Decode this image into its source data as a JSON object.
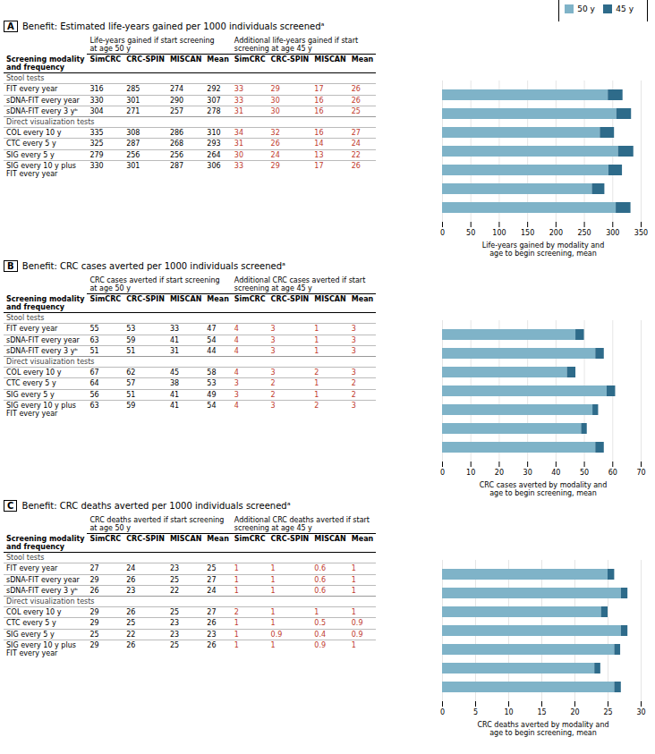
{
  "chart_data": [
    {
      "type": "bar",
      "orientation": "horizontal",
      "stacked": true,
      "tick_labels": "x",
      "grid": true,
      "legend": "upper right",
      "panel_label": "A",
      "title": "Benefit: Estimated life-years gained per 1000 individuals screenedᵃ",
      "categories": [
        "FIT every year",
        "sDNA-FIT every year",
        "sDNA-FIT every 3 yᵇ",
        "COL every 10 y",
        "CTC every 5 y",
        "SIG every 5 y",
        "SIG every 10 y plus\nFIT every year"
      ],
      "series": [
        {
          "name": "50 y",
          "color": "#7fb3c8",
          "values": [
            292,
            307,
            278,
            310,
            293,
            264,
            306
          ]
        },
        {
          "name": "45 y",
          "color": "#2e6b8a",
          "values": [
            26,
            26,
            25,
            27,
            24,
            22,
            26
          ]
        }
      ],
      "xlim": [
        0,
        350
      ],
      "xticks": [
        0,
        50,
        100,
        150,
        200,
        250,
        300,
        350
      ],
      "xlabel": "Life-years gained by modality and\nage to begin screening, mean",
      "table": {
        "row_header": "Screening modality\nand frequency",
        "column_groups": [
          {
            "label": "Life-years gained if start screening\nat age 50 y",
            "columns": [
              "SimCRC",
              "CRC-SPIN",
              "MISCAN",
              "Mean"
            ]
          },
          {
            "label": "Additional life-years gained if start\nscreening at age 45 y",
            "columns": [
              "SimCRC",
              "CRC-SPIN",
              "MISCAN",
              "Mean"
            ],
            "color": "#c0392b"
          }
        ],
        "sections": [
          {
            "label": "Stool tests",
            "rows": [
              {
                "label": "FIT every year",
                "values": [
                  316,
                  285,
                  274,
                  292,
                  33,
                  29,
                  17,
                  26
                ]
              },
              {
                "label": "sDNA-FIT every year",
                "values": [
                  330,
                  301,
                  290,
                  307,
                  33,
                  30,
                  16,
                  26
                ]
              },
              {
                "label": "sDNA-FIT every 3 yᵇ",
                "values": [
                  304,
                  271,
                  257,
                  278,
                  31,
                  30,
                  16,
                  25
                ]
              }
            ]
          },
          {
            "label": "Direct visualization tests",
            "rows": [
              {
                "label": "COL every 10 y",
                "values": [
                  335,
                  308,
                  286,
                  310,
                  34,
                  32,
                  16,
                  27
                ]
              },
              {
                "label": "CTC every 5 y",
                "values": [
                  325,
                  287,
                  268,
                  293,
                  31,
                  26,
                  14,
                  24
                ]
              },
              {
                "label": "SIG every 5 y",
                "values": [
                  279,
                  256,
                  256,
                  264,
                  30,
                  24,
                  13,
                  22
                ]
              },
              {
                "label": "SIG every 10 y plus\nFIT every year",
                "values": [
                  330,
                  301,
                  287,
                  306,
                  33,
                  29,
                  17,
                  26
                ]
              }
            ]
          }
        ]
      }
    },
    {
      "type": "bar",
      "orientation": "horizontal",
      "stacked": true,
      "tick_labels": "x",
      "grid": true,
      "panel_label": "B",
      "title": "Benefit: CRC cases averted per 1000 individuals screenedᵃ",
      "categories": [
        "FIT every year",
        "sDNA-FIT every year",
        "sDNA-FIT every 3 yᵇ",
        "COL every 10 y",
        "CTC every 5 y",
        "SIG every 5 y",
        "SIG every 10 y plus\nFIT every year"
      ],
      "series": [
        {
          "name": "50 y",
          "color": "#7fb3c8",
          "values": [
            47,
            54,
            44,
            58,
            53,
            49,
            54
          ]
        },
        {
          "name": "45 y",
          "color": "#2e6b8a",
          "values": [
            3,
            3,
            3,
            3,
            2,
            2,
            3
          ]
        }
      ],
      "xlim": [
        0,
        70
      ],
      "xticks": [
        0,
        10,
        20,
        30,
        40,
        50,
        60,
        70
      ],
      "xlabel": "CRC cases averted by modality and\nage to begin screening, mean",
      "table": {
        "row_header": "Screening modality\nand frequency",
        "column_groups": [
          {
            "label": "CRC cases averted if start screening\nat age 50 y",
            "columns": [
              "SimCRC",
              "CRC-SPIN",
              "MISCAN",
              "Mean"
            ]
          },
          {
            "label": "Additional CRC cases averted if start\nscreening at age 45 y",
            "columns": [
              "SimCRC",
              "CRC-SPIN",
              "MISCAN",
              "Mean"
            ],
            "color": "#c0392b"
          }
        ],
        "sections": [
          {
            "label": "Stool tests",
            "rows": [
              {
                "label": "FIT every year",
                "values": [
                  55,
                  53,
                  33,
                  47,
                  4,
                  3,
                  1,
                  3
                ]
              },
              {
                "label": "sDNA-FIT every year",
                "values": [
                  63,
                  59,
                  41,
                  54,
                  4,
                  3,
                  1,
                  3
                ]
              },
              {
                "label": "sDNA-FIT every 3 yᵇ",
                "values": [
                  51,
                  51,
                  31,
                  44,
                  4,
                  3,
                  1,
                  3
                ]
              }
            ]
          },
          {
            "label": "Direct visualization tests",
            "rows": [
              {
                "label": "COL every 10 y",
                "values": [
                  67,
                  62,
                  45,
                  58,
                  4,
                  3,
                  2,
                  3
                ]
              },
              {
                "label": "CTC every 5 y",
                "values": [
                  64,
                  57,
                  38,
                  53,
                  3,
                  2,
                  1,
                  2
                ]
              },
              {
                "label": "SIG every 5 y",
                "values": [
                  56,
                  51,
                  41,
                  49,
                  3,
                  2,
                  1,
                  2
                ]
              },
              {
                "label": "SIG every 10 y plus\nFIT every year",
                "values": [
                  63,
                  59,
                  41,
                  54,
                  4,
                  3,
                  2,
                  3
                ]
              }
            ]
          }
        ]
      }
    },
    {
      "type": "bar",
      "orientation": "horizontal",
      "stacked": true,
      "tick_labels": "x",
      "grid": true,
      "panel_label": "C",
      "title": "Benefit: CRC deaths averted per 1000 individuals screenedᵃ",
      "categories": [
        "FIT every year",
        "sDNA-FIT every year",
        "sDNA-FIT every 3 yᵇ",
        "COL every 10 y",
        "CTC every 5 y",
        "SIG every 5 y",
        "SIG every 10 y plus\nFIT every year"
      ],
      "series": [
        {
          "name": "50 y",
          "color": "#7fb3c8",
          "values": [
            25,
            27,
            24,
            27,
            26,
            23,
            26
          ]
        },
        {
          "name": "45 y",
          "color": "#2e6b8a",
          "values": [
            1,
            1,
            1,
            1,
            0.9,
            0.9,
            1
          ]
        }
      ],
      "xlim": [
        0,
        30
      ],
      "xticks": [
        0,
        5,
        10,
        15,
        20,
        25,
        30
      ],
      "xlabel": "CRC deaths averted by modality and\nage to begin screening, mean",
      "table": {
        "row_header": "Screening modality\nand frequency",
        "column_groups": [
          {
            "label": "CRC deaths averted if start screening\nat age 50 y",
            "columns": [
              "SimCRC",
              "CRC-SPIN",
              "MISCAN",
              "Mean"
            ]
          },
          {
            "label": "Additional CRC deaths averted if start\nscreening at age 45 y",
            "columns": [
              "SimCRC",
              "CRC-SPIN",
              "MISCAN",
              "Mean"
            ],
            "color": "#c0392b"
          }
        ],
        "sections": [
          {
            "label": "Stool tests",
            "rows": [
              {
                "label": "FIT every year",
                "values": [
                  27,
                  24,
                  23,
                  25,
                  1,
                  1,
                  0.6,
                  1
                ]
              },
              {
                "label": "sDNA-FIT every year",
                "values": [
                  29,
                  26,
                  25,
                  27,
                  1,
                  1,
                  0.6,
                  1
                ]
              },
              {
                "label": "sDNA-FIT every 3 yᵇ",
                "values": [
                  26,
                  23,
                  22,
                  24,
                  1,
                  1,
                  0.6,
                  1
                ]
              }
            ]
          },
          {
            "label": "Direct visualization tests",
            "rows": [
              {
                "label": "COL every 10 y",
                "values": [
                  29,
                  26,
                  25,
                  27,
                  2,
                  1,
                  1,
                  1
                ]
              },
              {
                "label": "CTC every 5 y",
                "values": [
                  29,
                  25,
                  23,
                  26,
                  1,
                  1,
                  0.5,
                  0.9
                ]
              },
              {
                "label": "SIG every 5 y",
                "values": [
                  25,
                  22,
                  23,
                  23,
                  1,
                  0.9,
                  0.4,
                  0.9
                ]
              },
              {
                "label": "SIG every 10 y plus\nFIT every year",
                "values": [
                  29,
                  26,
                  25,
                  26,
                  1,
                  1,
                  0.9,
                  1
                ]
              }
            ]
          }
        ]
      }
    }
  ]
}
